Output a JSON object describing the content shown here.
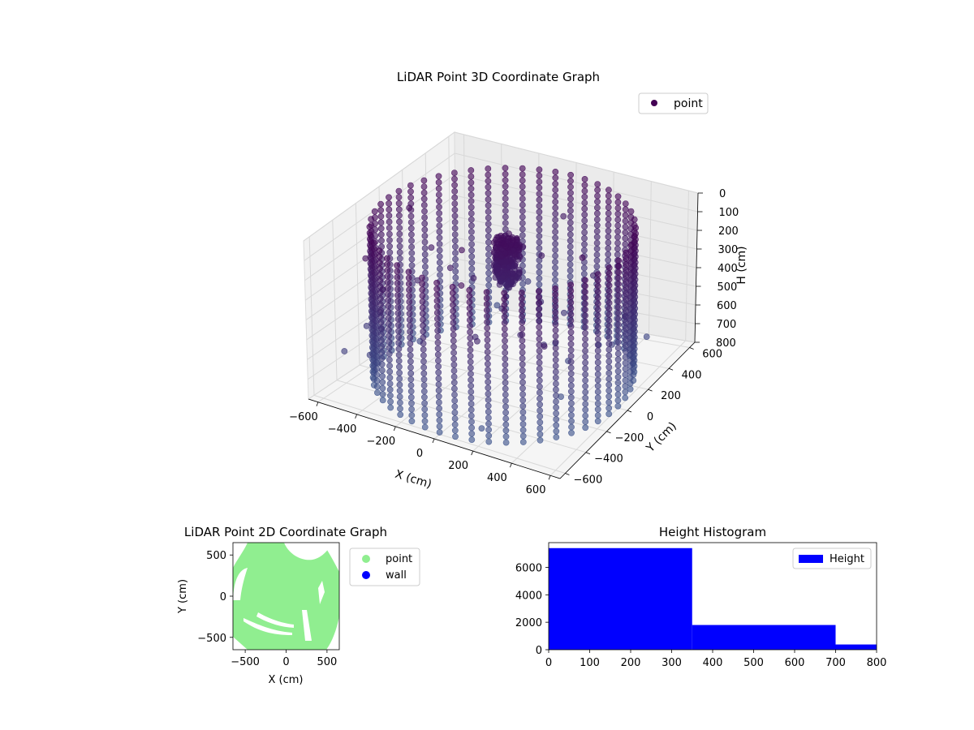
{
  "chart_data": [
    {
      "type": "scatter",
      "title": "LiDAR Point 3D Coordinate Graph",
      "projection": "3d",
      "xlabel": "X (cm)",
      "ylabel": "Y (cm)",
      "zlabel": "H (cm)",
      "xlim": [
        -650,
        650
      ],
      "ylim": [
        -650,
        650
      ],
      "zlim": [
        800,
        0
      ],
      "xticks": [
        "−600",
        "−400",
        "−200",
        "0",
        "200",
        "400",
        "600"
      ],
      "yticks": [
        "−600",
        "−400",
        "−200",
        "0",
        "200",
        "400",
        "600"
      ],
      "zticks": [
        "0",
        "100",
        "200",
        "300",
        "400",
        "500",
        "600",
        "700",
        "800"
      ],
      "legend": {
        "entries": [
          {
            "label": "point",
            "color": "#440154"
          }
        ],
        "placement": "top-right"
      },
      "series": [
        {
          "name": "point",
          "description_geometry": "cylindrical wall of points radius ~600 cm, heights 0–800 cm, central cluster near origin at heights ~150–350 cm",
          "colormap": "viridis"
        }
      ]
    },
    {
      "type": "scatter",
      "title": "LiDAR Point 2D Coordinate Graph",
      "xlabel": "X (cm)",
      "ylabel": "Y (cm)",
      "xlim": [
        -650,
        650
      ],
      "ylim": [
        -650,
        650
      ],
      "xticks": [
        "−500",
        "0",
        "500"
      ],
      "yticks": [
        "500",
        "0",
        "−500"
      ],
      "legend": {
        "entries": [
          {
            "label": "point",
            "color": "#90ee90"
          },
          {
            "label": "wall",
            "color": "#0000ff"
          }
        ],
        "placement": "outside-right"
      }
    },
    {
      "type": "bar",
      "title": "Height Histogram",
      "xlim": [
        0,
        800
      ],
      "ylim": [
        0,
        7800
      ],
      "xticks": [
        "0",
        "100",
        "200",
        "300",
        "400",
        "500",
        "600",
        "700",
        "800"
      ],
      "yticks": [
        "0",
        "2000",
        "4000",
        "6000"
      ],
      "bins": [
        {
          "x0": 0,
          "x1": 350,
          "value": 7400
        },
        {
          "x0": 350,
          "x1": 700,
          "value": 1800
        },
        {
          "x0": 700,
          "x1": 800,
          "value": 380
        }
      ],
      "legend": {
        "entries": [
          {
            "label": "Height",
            "color": "#0000ff"
          }
        ],
        "placement": "top-right"
      }
    }
  ]
}
